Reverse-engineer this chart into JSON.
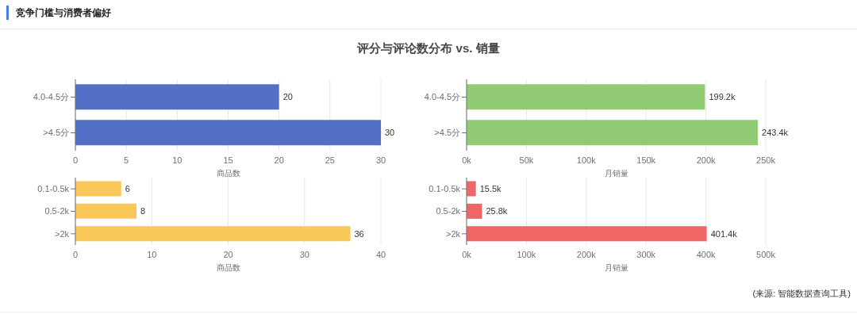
{
  "chart_data": [
    {
      "type": "bar",
      "title": "竞争门槛与消费者偏好",
      "subtitle": "评分与评论数分布 vs. 销量",
      "orientation": "horizontal",
      "categories": [
        "4.0-4.5分",
        ">4.5分"
      ],
      "values": [
        20,
        30
      ],
      "color": "#5470c6",
      "xlim": [
        0,
        30
      ],
      "xticks": [
        0,
        5,
        10,
        15,
        20,
        25,
        30
      ],
      "xlabel": "商品数",
      "grid": "x",
      "data_labels": true
    },
    {
      "type": "bar",
      "orientation": "horizontal",
      "categories": [
        "4.0-4.5分",
        ">4.5分"
      ],
      "values": [
        199200,
        243400
      ],
      "value_labels": [
        "199.2k",
        "243.4k"
      ],
      "color": "#91cc75",
      "xlim": [
        0,
        250000
      ],
      "xticks": [
        {
          "value": 0,
          "label": "0k"
        },
        {
          "value": 50000,
          "label": "50k"
        },
        {
          "value": 100000,
          "label": "100k"
        },
        {
          "value": 150000,
          "label": "150k"
        },
        {
          "value": 200000,
          "label": "200k"
        },
        {
          "value": 250000,
          "label": "250k"
        }
      ],
      "xlabel": "月销量",
      "grid": "x"
    },
    {
      "type": "bar",
      "orientation": "horizontal",
      "categories": [
        "0.1-0.5k",
        "0.5-2k",
        ">2k"
      ],
      "values": [
        6,
        8,
        36
      ],
      "color": "#fac858",
      "xlim": [
        0,
        40
      ],
      "xticks": [
        0,
        10,
        20,
        30,
        40
      ],
      "xlabel": "商品数",
      "grid": "x",
      "data_labels": true
    },
    {
      "type": "bar",
      "orientation": "horizontal",
      "categories": [
        "0.1-0.5k",
        "0.5-2k",
        ">2k"
      ],
      "values": [
        15500,
        25800,
        401400
      ],
      "value_labels": [
        "15.5k",
        "25.8k",
        "401.4k"
      ],
      "color": "#ee6666",
      "xlim": [
        0,
        500000
      ],
      "xticks": [
        {
          "value": 0,
          "label": "0k"
        },
        {
          "value": 100000,
          "label": "100k"
        },
        {
          "value": 200000,
          "label": "200k"
        },
        {
          "value": 300000,
          "label": "300k"
        },
        {
          "value": 400000,
          "label": "400k"
        },
        {
          "value": 500000,
          "label": "500k"
        }
      ],
      "xlabel": "月销量",
      "grid": "x",
      "annotations": [
        "(来源: 智能数据查询工具)"
      ]
    }
  ]
}
